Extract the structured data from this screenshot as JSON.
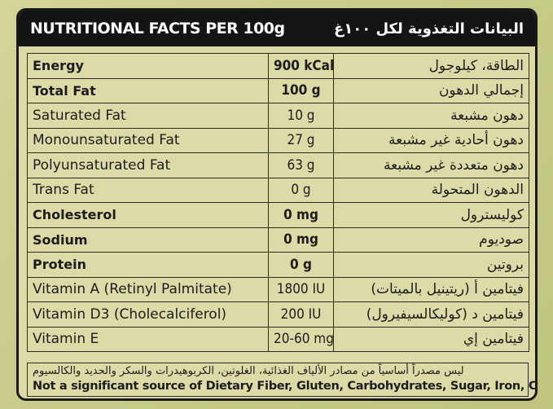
{
  "header": {
    "title_en": "NUTRITIONAL FACTS PER 100g",
    "title_ar": "البيانات التغذوية لكل ١٠٠غ"
  },
  "rows": [
    {
      "name": "Energy",
      "value": "900 kCal",
      "ar": "الطاقة، كيلوجول",
      "bold": true
    },
    {
      "name": "Total Fat",
      "value": "100 g",
      "ar": "إجمالي الدهون",
      "bold": true
    },
    {
      "name": "Saturated Fat",
      "value": "10 g",
      "ar": "دهون مشبعة",
      "bold": false
    },
    {
      "name": "Monounsaturated Fat",
      "value": "27 g",
      "ar": "دهون أحادية غير مشبعة",
      "bold": false
    },
    {
      "name": "Polyunsaturated Fat",
      "value": "63 g",
      "ar": "دهون متعددة غير مشبعة",
      "bold": false
    },
    {
      "name": "Trans Fat",
      "value": "0 g",
      "ar": "الدهون المتحولة",
      "bold": false
    },
    {
      "name": "Cholesterol",
      "value": "0 mg",
      "ar": "كوليسترول",
      "bold": true
    },
    {
      "name": "Sodium",
      "value": "0 mg",
      "ar": "صوديوم",
      "bold": true
    },
    {
      "name": "Protein",
      "value": "0 g",
      "ar": "بروتين",
      "bold": true
    },
    {
      "name": "Vitamin A (Retinyl Palmitate)",
      "value": "1800 IU",
      "ar": "فيتامين أ (ريتينيل بالميتات)",
      "bold": false
    },
    {
      "name": "Vitamin D3 (Cholecalciferol)",
      "value": "200 IU",
      "ar": "فيتامين د (كوليكالسيفيرول)",
      "bold": false
    },
    {
      "name": "Vitamin E",
      "value": "20-60 mg",
      "ar": "فيتامين إي",
      "bold": false
    }
  ],
  "footer": {
    "note_ar": "ليس مصدراً أساسياً من مصادر الألياف الغذائية، الغلوتين، الكربوهيدرات والسكر والحديد والكالسيوم",
    "note_en": "Not a significant source of Dietary Fiber, Gluten, Carbohydrates, Sugar, Iron, Calcium"
  }
}
